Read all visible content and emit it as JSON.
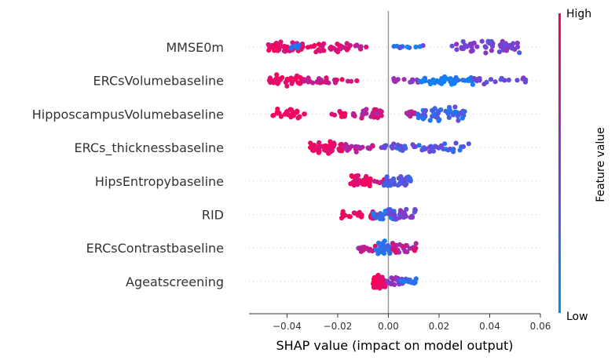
{
  "chart_data": {
    "type": "scatter",
    "subtype": "shap-beeswarm",
    "xlabel": "SHAP value (impact on model output)",
    "xlim": [
      -0.055,
      0.06
    ],
    "x_ticks": [
      -0.04,
      -0.02,
      0.0,
      0.02,
      0.04,
      0.06
    ],
    "x_tick_labels": [
      "−0.04",
      "−0.02",
      "0.00",
      "0.02",
      "0.04",
      "0.06"
    ],
    "colorbar": {
      "title": "Feature value",
      "high_label": "High",
      "low_label": "Low",
      "low_color": "#008bfb",
      "high_color": "#ff0052"
    },
    "features": [
      {
        "name": "MMSE0m",
        "clusters": [
          {
            "from": -0.049,
            "to": -0.03,
            "n": 45,
            "spread": 8,
            "fv": [
              0.8,
              1.0
            ]
          },
          {
            "from": -0.04,
            "to": -0.034,
            "n": 8,
            "spread": 6,
            "fv": [
              0.05,
              0.3
            ]
          },
          {
            "from": -0.03,
            "to": -0.016,
            "n": 30,
            "spread": 7,
            "fv": [
              0.75,
              1.0
            ]
          },
          {
            "from": -0.016,
            "to": -0.008,
            "n": 8,
            "spread": 3,
            "fv": [
              0.7,
              0.95
            ]
          },
          {
            "from": 0.002,
            "to": 0.015,
            "n": 10,
            "spread": 3,
            "fv": [
              0.0,
              0.5
            ]
          },
          {
            "from": 0.025,
            "to": 0.052,
            "n": 50,
            "spread": 8,
            "fv": [
              0.35,
              0.6
            ]
          }
        ]
      },
      {
        "name": "ERCsVolumebaseline",
        "clusters": [
          {
            "from": -0.047,
            "to": -0.034,
            "n": 35,
            "spread": 8,
            "fv": [
              0.85,
              1.0
            ]
          },
          {
            "from": -0.034,
            "to": -0.02,
            "n": 25,
            "spread": 5,
            "fv": [
              0.7,
              0.95
            ]
          },
          {
            "from": -0.02,
            "to": -0.011,
            "n": 4,
            "spread": 2,
            "fv": [
              0.75,
              1.0
            ]
          },
          {
            "from": 0.002,
            "to": 0.012,
            "n": 12,
            "spread": 3,
            "fv": [
              0.5,
              0.7
            ]
          },
          {
            "from": 0.012,
            "to": 0.034,
            "n": 45,
            "spread": 6,
            "fv": [
              0.0,
              0.2
            ]
          },
          {
            "from": 0.032,
            "to": 0.055,
            "n": 18,
            "spread": 5,
            "fv": [
              0.3,
              0.55
            ]
          }
        ]
      },
      {
        "name": "HipposcampusVolumebaseline",
        "clusters": [
          {
            "from": -0.046,
            "to": -0.034,
            "n": 28,
            "spread": 7,
            "fv": [
              0.9,
              1.0
            ]
          },
          {
            "from": -0.034,
            "to": -0.032,
            "n": 2,
            "spread": 1,
            "fv": [
              0.9,
              1.0
            ]
          },
          {
            "from": -0.023,
            "to": -0.017,
            "n": 10,
            "spread": 5,
            "fv": [
              0.8,
              1.0
            ]
          },
          {
            "from": -0.015,
            "to": -0.002,
            "n": 30,
            "spread": 7,
            "fv": [
              0.6,
              0.95
            ]
          },
          {
            "from": 0.006,
            "to": 0.013,
            "n": 12,
            "spread": 4,
            "fv": [
              0.6,
              0.8
            ]
          },
          {
            "from": 0.011,
            "to": 0.031,
            "n": 50,
            "spread": 10,
            "fv": [
              0.1,
              0.4
            ]
          }
        ]
      },
      {
        "name": "ERCs_thicknessbaseline",
        "clusters": [
          {
            "from": -0.031,
            "to": -0.018,
            "n": 50,
            "spread": 9,
            "fv": [
              0.8,
              1.0
            ]
          },
          {
            "from": -0.018,
            "to": -0.006,
            "n": 22,
            "spread": 6,
            "fv": [
              0.55,
              0.85
            ]
          },
          {
            "from": -0.004,
            "to": 0.006,
            "n": 12,
            "spread": 4,
            "fv": [
              0.35,
              0.6
            ]
          },
          {
            "from": 0.002,
            "to": 0.033,
            "n": 45,
            "spread": 6,
            "fv": [
              0.1,
              0.5
            ]
          }
        ]
      },
      {
        "name": "HipsEntropybaseline",
        "clusters": [
          {
            "from": -0.015,
            "to": -0.007,
            "n": 35,
            "spread": 8,
            "fv": [
              0.85,
              1.0
            ]
          },
          {
            "from": -0.006,
            "to": 0.0,
            "n": 6,
            "spread": 3,
            "fv": [
              0.7,
              0.9
            ]
          },
          {
            "from": -0.002,
            "to": 0.009,
            "n": 35,
            "spread": 8,
            "fv": [
              0.2,
              0.5
            ]
          }
        ]
      },
      {
        "name": "RID",
        "clusters": [
          {
            "from": -0.019,
            "to": -0.004,
            "n": 30,
            "spread": 6,
            "fv": [
              0.85,
              1.0
            ]
          },
          {
            "from": -0.006,
            "to": 0.003,
            "n": 28,
            "spread": 7,
            "fv": [
              0.05,
              0.3
            ]
          },
          {
            "from": 0.0,
            "to": 0.011,
            "n": 30,
            "spread": 8,
            "fv": [
              0.35,
              0.65
            ]
          }
        ]
      },
      {
        "name": "ERCsContrastbaseline",
        "clusters": [
          {
            "from": -0.012,
            "to": -0.005,
            "n": 15,
            "spread": 6,
            "fv": [
              0.6,
              0.9
            ]
          },
          {
            "from": -0.005,
            "to": 0.001,
            "n": 35,
            "spread": 10,
            "fv": [
              0.05,
              0.35
            ]
          },
          {
            "from": 0.001,
            "to": 0.012,
            "n": 25,
            "spread": 7,
            "fv": [
              0.55,
              0.95
            ]
          }
        ]
      },
      {
        "name": "Ageatscreening",
        "clusters": [
          {
            "from": -0.006,
            "to": -0.001,
            "n": 40,
            "spread": 10,
            "fv": [
              0.85,
              1.0
            ]
          },
          {
            "from": -0.001,
            "to": 0.006,
            "n": 20,
            "spread": 6,
            "fv": [
              0.45,
              0.7
            ]
          },
          {
            "from": 0.005,
            "to": 0.011,
            "n": 14,
            "spread": 4,
            "fv": [
              0.0,
              0.3
            ]
          }
        ]
      }
    ]
  }
}
